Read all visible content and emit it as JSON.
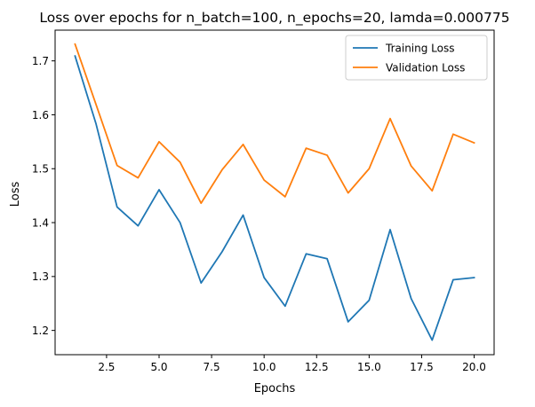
{
  "chart_data": {
    "type": "line",
    "title": "Loss over epochs for n_batch=100, n_epochs=20, lamda=0.000775",
    "xlabel": "Epochs",
    "ylabel": "Loss",
    "xlim": [
      0.05,
      20.95
    ],
    "ylim": [
      1.155,
      1.757
    ],
    "xticks": [
      2.5,
      5.0,
      7.5,
      10.0,
      12.5,
      15.0,
      17.5,
      20.0
    ],
    "xtick_labels": [
      "2.5",
      "5.0",
      "7.5",
      "10.0",
      "12.5",
      "15.0",
      "17.5",
      "20.0"
    ],
    "yticks": [
      1.2,
      1.3,
      1.4,
      1.5,
      1.6,
      1.7
    ],
    "ytick_labels": [
      "1.2",
      "1.3",
      "1.4",
      "1.5",
      "1.6",
      "1.7"
    ],
    "grid": false,
    "legend_position": "top-right",
    "x": [
      1,
      2,
      3,
      4,
      5,
      6,
      7,
      8,
      9,
      10,
      11,
      12,
      13,
      14,
      15,
      16,
      17,
      18,
      19,
      20
    ],
    "series": [
      {
        "name": "Training Loss",
        "color": "#1f77b4",
        "values": [
          1.709,
          1.583,
          1.429,
          1.394,
          1.461,
          1.4,
          1.288,
          1.346,
          1.414,
          1.298,
          1.245,
          1.342,
          1.333,
          1.216,
          1.256,
          1.387,
          1.259,
          1.182,
          1.294,
          1.298
        ]
      },
      {
        "name": "Validation Loss",
        "color": "#ff7f0e",
        "values": [
          1.731,
          1.619,
          1.506,
          1.483,
          1.55,
          1.512,
          1.436,
          1.498,
          1.545,
          1.479,
          1.448,
          1.538,
          1.525,
          1.455,
          1.5,
          1.593,
          1.505,
          1.459,
          1.564,
          1.548
        ]
      }
    ]
  }
}
